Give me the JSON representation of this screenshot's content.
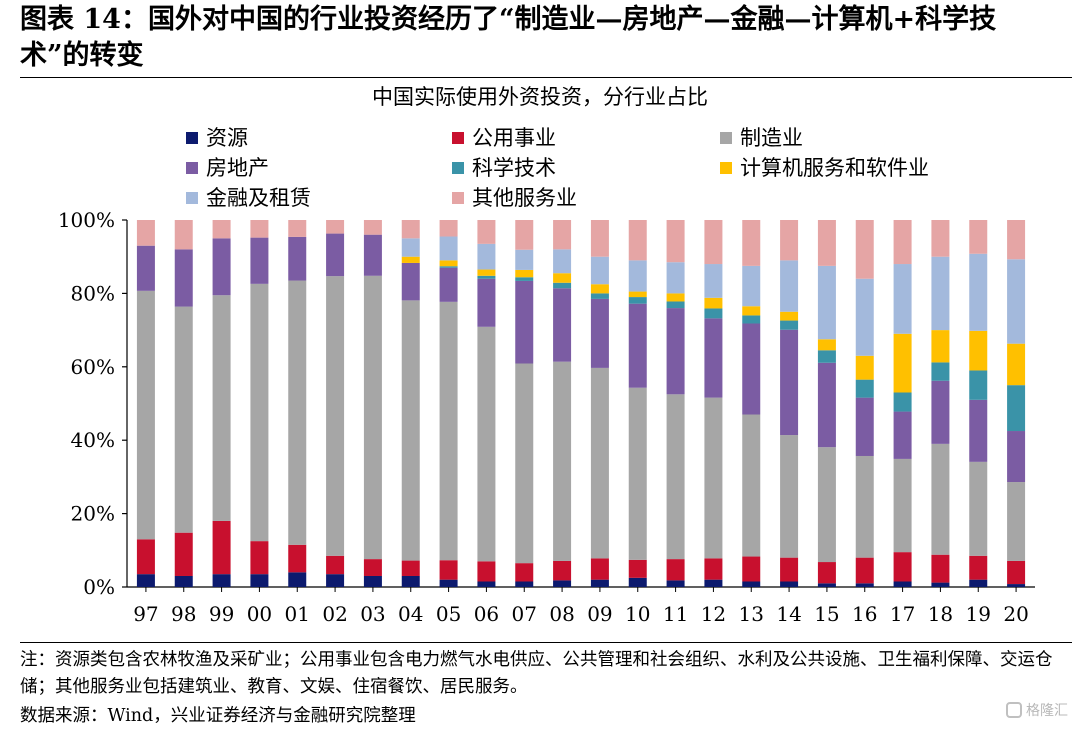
{
  "figure": {
    "title": "图表 14：国外对中国的行业投资经历了“制造业—房地产—金融—计算机+科学技术”的转变"
  },
  "chart_data": {
    "type": "bar",
    "stacked": true,
    "percent": true,
    "title": "中国实际使用外资投资，分行业占比",
    "xlabel": "",
    "ylabel": "",
    "ylim": [
      0,
      100
    ],
    "yticks": [
      "0%",
      "20%",
      "40%",
      "60%",
      "80%",
      "100%"
    ],
    "legend_position": "top",
    "categories": [
      "97",
      "98",
      "99",
      "00",
      "01",
      "02",
      "03",
      "04",
      "05",
      "06",
      "07",
      "08",
      "09",
      "10",
      "11",
      "12",
      "13",
      "14",
      "15",
      "16",
      "17",
      "18",
      "19",
      "20"
    ],
    "series": [
      {
        "name": "资源",
        "color": "#0c1a6e",
        "values": [
          3.5,
          3.0,
          3.5,
          3.5,
          4.0,
          3.5,
          3.0,
          3.0,
          2.0,
          1.5,
          1.5,
          1.8,
          2.0,
          2.5,
          1.8,
          2.0,
          1.5,
          1.5,
          1.0,
          1.0,
          1.5,
          1.2,
          2.0,
          0.8
        ]
      },
      {
        "name": "公用事业",
        "color": "#c8102e",
        "values": [
          9.5,
          11.8,
          14.5,
          9.0,
          7.5,
          5.0,
          4.6,
          4.2,
          5.3,
          5.5,
          5.0,
          5.3,
          5.8,
          4.9,
          5.8,
          5.8,
          6.8,
          6.5,
          5.8,
          7.0,
          8.0,
          7.6,
          6.5,
          6.3
        ]
      },
      {
        "name": "制造业",
        "color": "#a6a6a6",
        "values": [
          67.7,
          61.6,
          61.5,
          70.1,
          72.0,
          76.2,
          77.2,
          70.9,
          70.4,
          63.9,
          54.4,
          54.3,
          51.9,
          46.9,
          44.9,
          43.8,
          38.7,
          33.4,
          31.3,
          27.7,
          25.4,
          30.2,
          25.6,
          21.5
        ]
      },
      {
        "name": "房地产",
        "color": "#7b5ca3",
        "values": [
          12.3,
          15.6,
          15.5,
          12.6,
          11.9,
          11.6,
          11.2,
          10.2,
          9.3,
          13.1,
          22.5,
          20.0,
          18.8,
          22.9,
          23.5,
          21.6,
          24.8,
          28.7,
          23.0,
          15.9,
          12.9,
          17.2,
          16.9,
          13.9
        ]
      },
      {
        "name": "科学技术",
        "color": "#3a93a8",
        "values": [
          0,
          0,
          0,
          0,
          0,
          0,
          0,
          0,
          0.4,
          0.8,
          1.0,
          1.5,
          1.5,
          1.8,
          1.8,
          2.7,
          2.2,
          2.5,
          3.4,
          4.9,
          5.2,
          5.0,
          8.0,
          12.5
        ]
      },
      {
        "name": "计算机服务和软件业",
        "color": "#ffc000",
        "values": [
          0,
          0,
          0,
          0,
          0,
          0,
          0,
          1.7,
          1.6,
          1.7,
          2.0,
          2.6,
          2.5,
          1.5,
          2.2,
          2.9,
          2.5,
          2.4,
          3.0,
          6.5,
          16.0,
          8.8,
          10.8,
          11.3
        ]
      },
      {
        "name": "金融及租赁",
        "color": "#a3b9dc",
        "values": [
          0,
          0,
          0,
          0,
          0,
          0,
          0,
          5.0,
          6.5,
          7.0,
          5.5,
          6.5,
          7.5,
          8.5,
          8.5,
          9.2,
          11.0,
          14.0,
          20.0,
          21.0,
          19.0,
          20.0,
          21.0,
          23.0
        ]
      },
      {
        "name": "其他服务业",
        "color": "#e5a5a5",
        "values": [
          7.0,
          8.0,
          5.0,
          4.8,
          4.6,
          3.7,
          4.0,
          5.0,
          4.5,
          6.5,
          8.1,
          8.0,
          10.0,
          11.0,
          11.5,
          12.0,
          12.5,
          11.0,
          12.5,
          16.0,
          12.0,
          10.0,
          9.2,
          10.7
        ]
      }
    ]
  },
  "notes": {
    "note": "注：资源类包含农林牧渔及采矿业；公用事业包含电力燃气水电供应、公共管理和社会组织、水利及公共设施、卫生福利保障、交运仓储；其他服务业包括建筑业、教育、文娱、住宿餐饮、居民服务。",
    "source": "数据来源：Wind，兴业证券经济与金融研究院整理"
  },
  "watermark": {
    "text": "格隆汇",
    "icon": "gelonghui-logo-icon"
  }
}
